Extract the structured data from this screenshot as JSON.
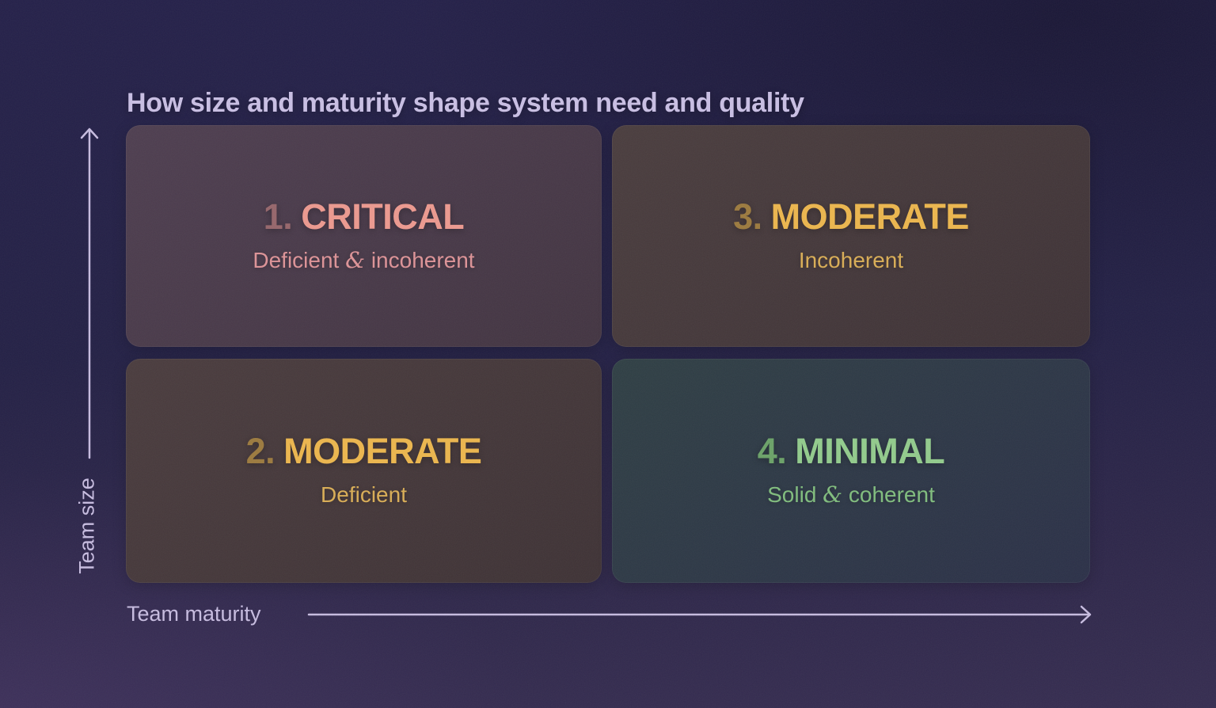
{
  "title": "How size and maturity shape system need and quality",
  "title_color": "#c9bfe4",
  "axes": {
    "y_label": "Team size",
    "x_label": "Team maturity",
    "color": "#c7bce0"
  },
  "quadrants": [
    {
      "number": "1.",
      "title": "CRITICAL",
      "subtitle": "Deficient & incoherent",
      "position": "top-left",
      "number_color": "#96666b",
      "title_color": "#ec998f",
      "subtitle_color": "#dd9397",
      "bg_from": "#4e3e50",
      "bg_to": "#423441"
    },
    {
      "number": "2.",
      "title": "MODERATE",
      "subtitle": "Deficient",
      "position": "bottom-left",
      "number_color": "#9c7a3e",
      "title_color": "#ecb64d",
      "subtitle_color": "#d9ad55",
      "bg_from": "#4a3c3e",
      "bg_to": "#3e3235"
    },
    {
      "number": "3.",
      "title": "MODERATE",
      "subtitle": "Incoherent",
      "position": "top-right",
      "number_color": "#9c7a3e",
      "title_color": "#ecb64d",
      "subtitle_color": "#d9ad55",
      "bg_from": "#4a3d3e",
      "bg_to": "#3e3236"
    },
    {
      "number": "4.",
      "title": "MINIMAL",
      "subtitle": "Solid & coherent",
      "position": "bottom-right",
      "number_color": "#6ba268",
      "title_color": "#92cb8c",
      "subtitle_color": "#80bd7d",
      "bg_from": "#2f3f44",
      "bg_to": "#2b3048"
    }
  ]
}
